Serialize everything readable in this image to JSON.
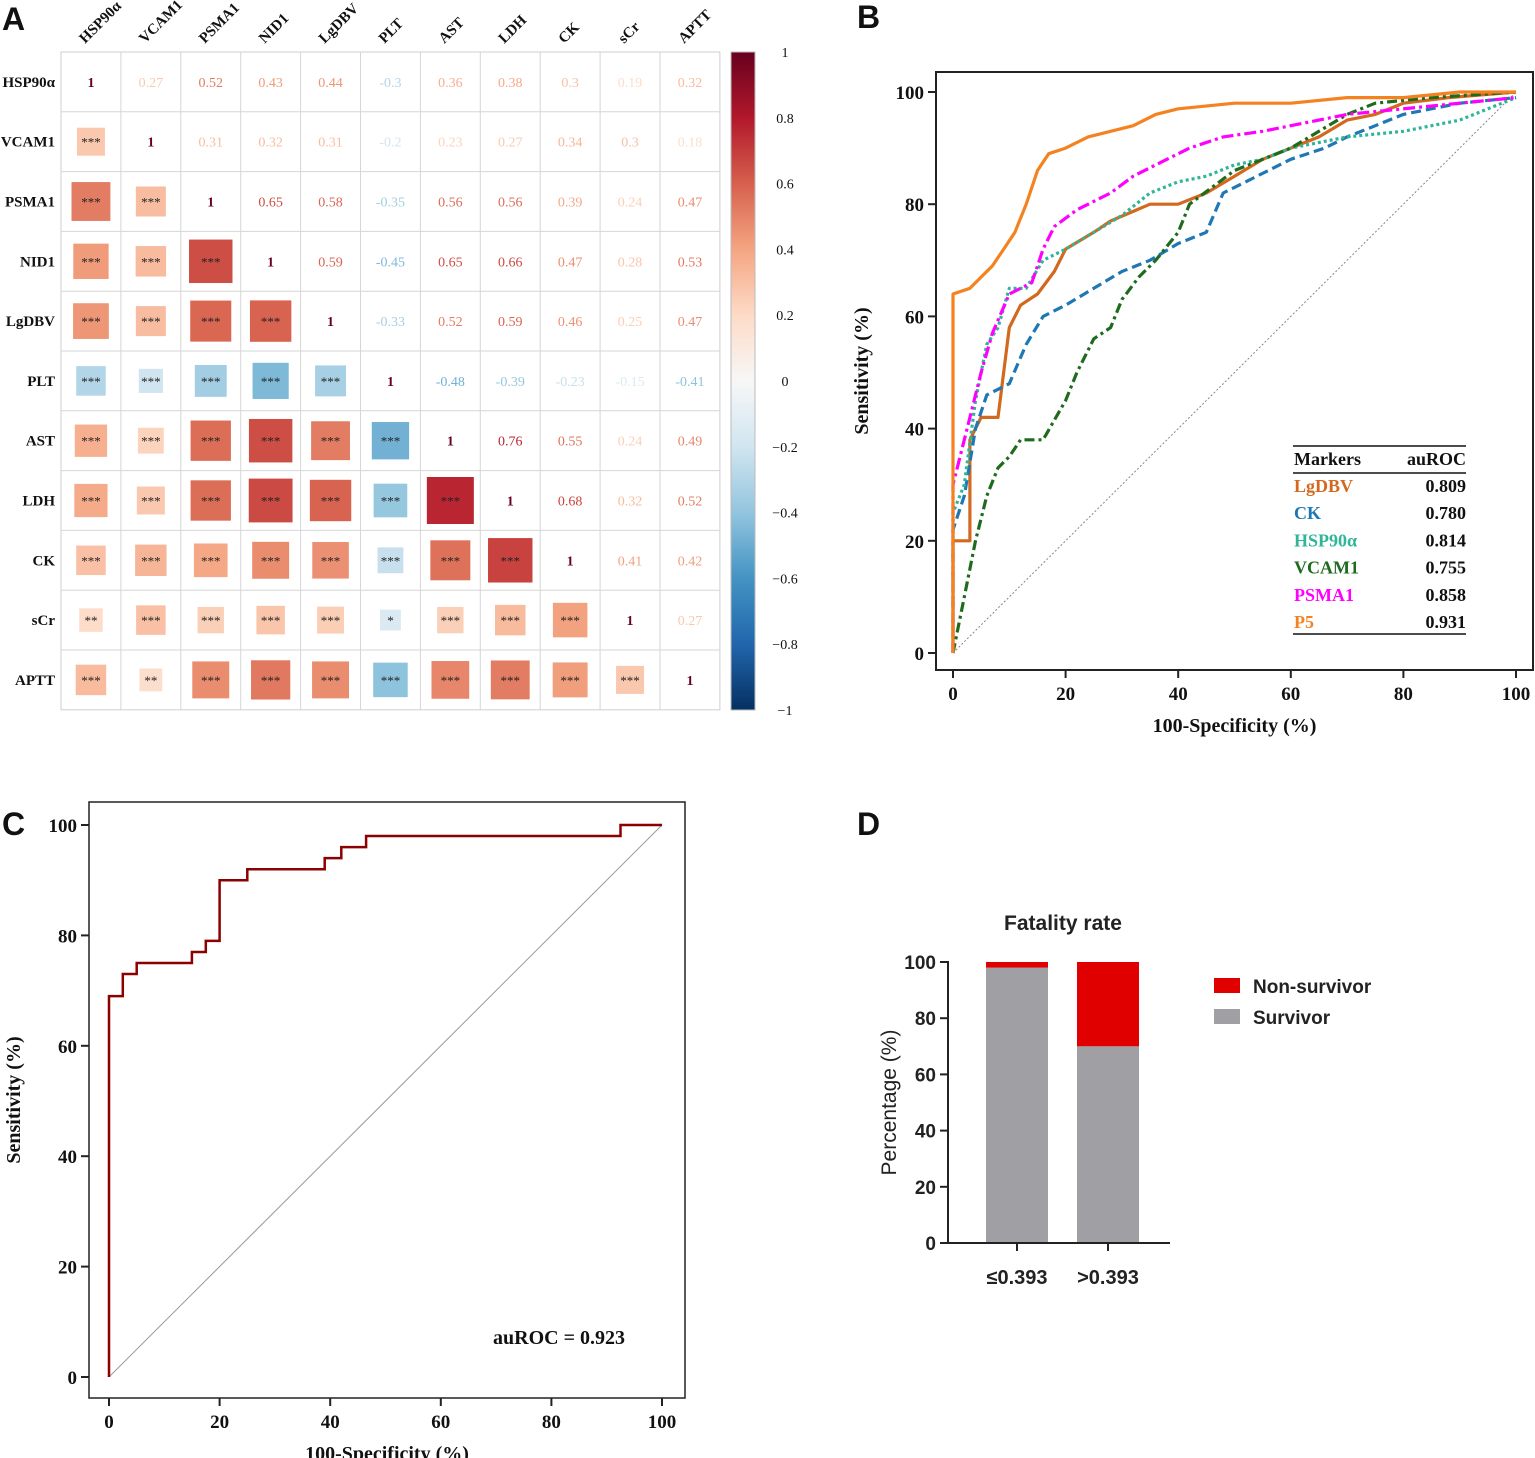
{
  "panel_labels": [
    "A",
    "B",
    "C",
    "D"
  ],
  "chart_data": [
    {
      "panel": "A",
      "type": "heatmap",
      "variables": [
        "HSP90α",
        "VCAM1",
        "PSMA1",
        "NID1",
        "LgDBV",
        "PLT",
        "AST",
        "LDH",
        "CK",
        "sCr",
        "APTT"
      ],
      "matrix": [
        [
          1.0,
          0.27,
          0.52,
          0.43,
          0.44,
          -0.3,
          0.36,
          0.38,
          0.3,
          0.19,
          0.32
        ],
        [
          0.27,
          1.0,
          0.31,
          0.32,
          0.31,
          -0.2,
          0.23,
          0.27,
          0.34,
          0.3,
          0.18
        ],
        [
          0.52,
          0.31,
          1.0,
          0.65,
          0.58,
          -0.35,
          0.56,
          0.56,
          0.39,
          0.24,
          0.47
        ],
        [
          0.43,
          0.32,
          0.65,
          1.0,
          0.59,
          -0.45,
          0.65,
          0.66,
          0.47,
          0.28,
          0.53
        ],
        [
          0.44,
          0.31,
          0.58,
          0.59,
          1.0,
          -0.33,
          0.52,
          0.59,
          0.46,
          0.25,
          0.47
        ],
        [
          -0.3,
          -0.2,
          -0.35,
          -0.45,
          -0.33,
          1.0,
          -0.48,
          -0.39,
          -0.23,
          -0.15,
          -0.41
        ],
        [
          0.36,
          0.23,
          0.56,
          0.65,
          0.52,
          -0.48,
          1.0,
          0.76,
          0.55,
          0.24,
          0.49
        ],
        [
          0.38,
          0.27,
          0.56,
          0.66,
          0.59,
          -0.39,
          0.76,
          1.0,
          0.68,
          0.32,
          0.52
        ],
        [
          0.3,
          0.34,
          0.39,
          0.47,
          0.46,
          -0.23,
          0.55,
          0.68,
          1.0,
          0.41,
          0.42
        ],
        [
          0.19,
          0.3,
          0.24,
          0.28,
          0.25,
          -0.15,
          0.24,
          0.32,
          0.41,
          1.0,
          0.27
        ],
        [
          0.32,
          0.18,
          0.47,
          0.53,
          0.47,
          -0.41,
          0.49,
          0.52,
          0.42,
          0.27,
          1.0
        ]
      ],
      "lower_significance": [
        [
          "",
          "",
          "",
          "",
          "",
          "",
          "",
          "",
          "",
          "",
          ""
        ],
        [
          "***",
          "",
          "",
          "",
          "",
          "",
          "",
          "",
          "",
          "",
          ""
        ],
        [
          "***",
          "***",
          "",
          "",
          "",
          "",
          "",
          "",
          "",
          "",
          ""
        ],
        [
          "***",
          "***",
          "***",
          "",
          "",
          "",
          "",
          "",
          "",
          "",
          ""
        ],
        [
          "***",
          "***",
          "***",
          "***",
          "",
          "",
          "",
          "",
          "",
          "",
          ""
        ],
        [
          "***",
          "***",
          "***",
          "***",
          "***",
          "",
          "",
          "",
          "",
          "",
          ""
        ],
        [
          "***",
          "***",
          "***",
          "***",
          "***",
          "***",
          "",
          "",
          "",
          "",
          ""
        ],
        [
          "***",
          "***",
          "***",
          "***",
          "***",
          "***",
          "***",
          "",
          "",
          "",
          ""
        ],
        [
          "***",
          "***",
          "***",
          "***",
          "***",
          "***",
          "***",
          "***",
          "",
          "",
          ""
        ],
        [
          "**",
          "***",
          "***",
          "***",
          "***",
          "*",
          "***",
          "***",
          "***",
          "",
          ""
        ],
        [
          "***",
          "**",
          "***",
          "***",
          "***",
          "***",
          "***",
          "***",
          "***",
          "***",
          ""
        ]
      ],
      "colorbar_ticks": [
        "1",
        "0.8",
        "0.6",
        "0.4",
        "0.2",
        "0",
        "−0.2",
        "−0.4",
        "−0.6",
        "−0.8",
        "−1"
      ],
      "colorbar_range": [
        -1,
        1
      ],
      "colors": {
        "high": "#67001f",
        "mid": "#f7f7f7",
        "low": "#053061"
      }
    },
    {
      "panel": "B",
      "type": "line",
      "xlabel": "100-Specificity (%)",
      "ylabel": "Sensitivity (%)",
      "xlim": [
        0,
        100
      ],
      "ylim": [
        0,
        100
      ],
      "xticks": [
        "0",
        "20",
        "40",
        "60",
        "80",
        "100"
      ],
      "yticks": [
        "0",
        "20",
        "40",
        "60",
        "80",
        "100"
      ],
      "legend": {
        "header": [
          "Markers",
          "auROC"
        ],
        "placement": "bottom-right"
      },
      "series": [
        {
          "name": "LgDBV",
          "auroc": "0.809",
          "color": "#d2691e",
          "dash": "solid",
          "points": [
            [
              0,
              0
            ],
            [
              0,
              20
            ],
            [
              3,
              20
            ],
            [
              3,
              38
            ],
            [
              5,
              42
            ],
            [
              8,
              42
            ],
            [
              10,
              58
            ],
            [
              12,
              62
            ],
            [
              15,
              64
            ],
            [
              18,
              68
            ],
            [
              20,
              72
            ],
            [
              25,
              75
            ],
            [
              28,
              77
            ],
            [
              35,
              80
            ],
            [
              40,
              80
            ],
            [
              45,
              82
            ],
            [
              50,
              85
            ],
            [
              55,
              88
            ],
            [
              60,
              90
            ],
            [
              65,
              92
            ],
            [
              70,
              95
            ],
            [
              75,
              96
            ],
            [
              80,
              98
            ],
            [
              88,
              99
            ],
            [
              100,
              100
            ]
          ]
        },
        {
          "name": "CK",
          "auroc": "0.780",
          "color": "#1f77b4",
          "dash": "10,5",
          "points": [
            [
              0,
              0
            ],
            [
              0,
              22
            ],
            [
              2,
              28
            ],
            [
              4,
              40
            ],
            [
              6,
              46
            ],
            [
              10,
              48
            ],
            [
              13,
              55
            ],
            [
              16,
              60
            ],
            [
              20,
              62
            ],
            [
              25,
              65
            ],
            [
              30,
              68
            ],
            [
              35,
              70
            ],
            [
              40,
              73
            ],
            [
              45,
              75
            ],
            [
              48,
              82
            ],
            [
              52,
              84
            ],
            [
              56,
              86
            ],
            [
              60,
              88
            ],
            [
              66,
              90
            ],
            [
              70,
              92
            ],
            [
              75,
              94
            ],
            [
              80,
              96
            ],
            [
              90,
              98
            ],
            [
              100,
              99
            ]
          ]
        },
        {
          "name": "HSP90α",
          "auroc": "0.814",
          "color": "#2fb59a",
          "dash": "3,3",
          "points": [
            [
              0,
              0
            ],
            [
              0,
              25
            ],
            [
              2,
              30
            ],
            [
              4,
              45
            ],
            [
              6,
              55
            ],
            [
              8,
              58
            ],
            [
              10,
              65
            ],
            [
              13,
              65
            ],
            [
              16,
              70
            ],
            [
              20,
              72
            ],
            [
              25,
              75
            ],
            [
              30,
              78
            ],
            [
              35,
              82
            ],
            [
              40,
              84
            ],
            [
              45,
              85
            ],
            [
              50,
              87
            ],
            [
              55,
              88
            ],
            [
              60,
              90
            ],
            [
              65,
              91
            ],
            [
              70,
              92
            ],
            [
              80,
              93
            ],
            [
              90,
              95
            ],
            [
              100,
              99
            ]
          ]
        },
        {
          "name": "VCAM1",
          "auroc": "0.755",
          "color": "#1e6b1e",
          "dash": "10,4,3,4",
          "points": [
            [
              0,
              0
            ],
            [
              2,
              10
            ],
            [
              4,
              20
            ],
            [
              6,
              28
            ],
            [
              8,
              33
            ],
            [
              10,
              35
            ],
            [
              12,
              38
            ],
            [
              16,
              38
            ],
            [
              20,
              45
            ],
            [
              22,
              50
            ],
            [
              25,
              56
            ],
            [
              28,
              58
            ],
            [
              30,
              63
            ],
            [
              33,
              67
            ],
            [
              36,
              70
            ],
            [
              40,
              75
            ],
            [
              42,
              80
            ],
            [
              46,
              83
            ],
            [
              50,
              86
            ],
            [
              55,
              88
            ],
            [
              60,
              90
            ],
            [
              65,
              93
            ],
            [
              70,
              96
            ],
            [
              75,
              98
            ],
            [
              85,
              99
            ],
            [
              100,
              100
            ]
          ]
        },
        {
          "name": "PSMA1",
          "auroc": "0.858",
          "color": "#ff00ff",
          "dash": "12,4,3,4",
          "points": [
            [
              0,
              0
            ],
            [
              0,
              30
            ],
            [
              2,
              38
            ],
            [
              3,
              42
            ],
            [
              5,
              50
            ],
            [
              7,
              57
            ],
            [
              10,
              64
            ],
            [
              14,
              66
            ],
            [
              16,
              72
            ],
            [
              18,
              76
            ],
            [
              22,
              79
            ],
            [
              28,
              82
            ],
            [
              32,
              85
            ],
            [
              38,
              88
            ],
            [
              42,
              90
            ],
            [
              48,
              92
            ],
            [
              55,
              93
            ],
            [
              60,
              94
            ],
            [
              65,
              95
            ],
            [
              70,
              96
            ],
            [
              80,
              97
            ],
            [
              90,
              98
            ],
            [
              100,
              99
            ]
          ]
        },
        {
          "name": "P5",
          "auroc": "0.931",
          "color": "#f58220",
          "dash": "solid",
          "points": [
            [
              0,
              0
            ],
            [
              0,
              64
            ],
            [
              3,
              65
            ],
            [
              5,
              67
            ],
            [
              7,
              69
            ],
            [
              9,
              72
            ],
            [
              11,
              75
            ],
            [
              13,
              80
            ],
            [
              15,
              86
            ],
            [
              17,
              89
            ],
            [
              20,
              90
            ],
            [
              24,
              92
            ],
            [
              28,
              93
            ],
            [
              32,
              94
            ],
            [
              36,
              96
            ],
            [
              40,
              97
            ],
            [
              50,
              98
            ],
            [
              60,
              98
            ],
            [
              70,
              99
            ],
            [
              80,
              99
            ],
            [
              90,
              100
            ],
            [
              100,
              100
            ]
          ]
        }
      ]
    },
    {
      "panel": "C",
      "type": "line",
      "xlabel": "100-Specificity (%)",
      "ylabel": "Sensitivity (%)",
      "xlim": [
        0,
        100
      ],
      "ylim": [
        0,
        100
      ],
      "xticks": [
        "0",
        "20",
        "40",
        "60",
        "80",
        "100"
      ],
      "yticks": [
        "0",
        "20",
        "40",
        "60",
        "80",
        "100"
      ],
      "annotation": "auROC = 0.923",
      "series": [
        {
          "name": "ROC",
          "color": "#8b0000",
          "points": [
            [
              0,
              0
            ],
            [
              0,
              69
            ],
            [
              2.5,
              69
            ],
            [
              2.5,
              73
            ],
            [
              5,
              73
            ],
            [
              5,
              75
            ],
            [
              15,
              75
            ],
            [
              15,
              77
            ],
            [
              17.5,
              77
            ],
            [
              17.5,
              79
            ],
            [
              20,
              79
            ],
            [
              20,
              90
            ],
            [
              25,
              90
            ],
            [
              25,
              92
            ],
            [
              39,
              92
            ],
            [
              39,
              94
            ],
            [
              42,
              94
            ],
            [
              42,
              96
            ],
            [
              46.5,
              96
            ],
            [
              46.5,
              98
            ],
            [
              92.5,
              98
            ],
            [
              92.5,
              100
            ],
            [
              100,
              100
            ]
          ]
        }
      ]
    },
    {
      "panel": "D",
      "type": "bar",
      "title": "Fatality rate",
      "ylabel": "Percentage (%)",
      "ylim": [
        0,
        100
      ],
      "yticks": [
        "0",
        "20",
        "40",
        "60",
        "80",
        "100"
      ],
      "categories": [
        "≤0.393",
        ">0.393"
      ],
      "series": [
        {
          "name": "Survivor",
          "color": "#a0a0a4",
          "values": [
            98,
            70
          ]
        },
        {
          "name": "Non-survivor",
          "color": "#e00000",
          "values": [
            2,
            30
          ]
        }
      ],
      "legend_order": [
        "Non-survivor",
        "Survivor"
      ]
    }
  ]
}
